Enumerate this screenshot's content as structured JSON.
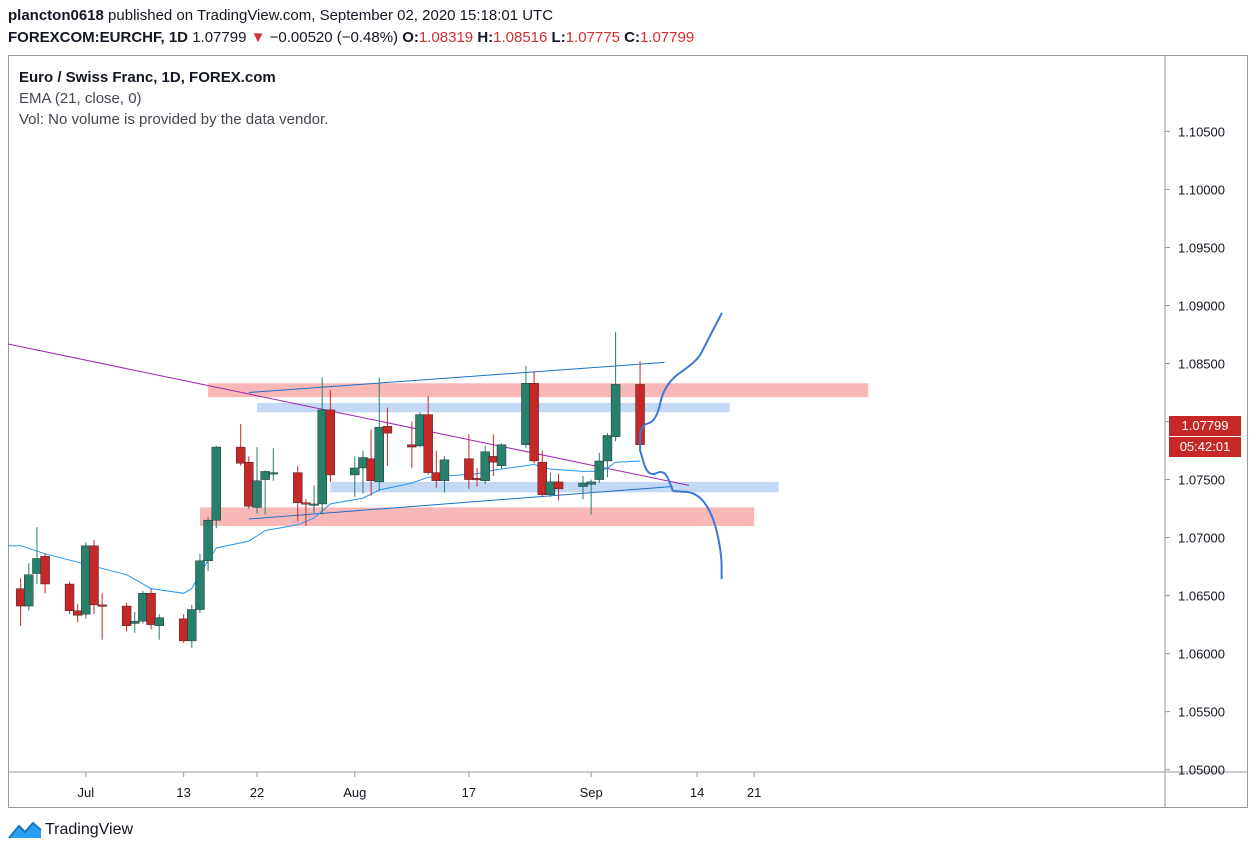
{
  "header": {
    "author": "plancton0618",
    "published_text": "published on TradingView.com, September 02, 2020 15:18:01 UTC",
    "symbol": "FOREXCOM:EURCHF, 1D",
    "last": "1.07799",
    "change": "−0.00520 (−0.48%)",
    "o_label": "O:",
    "o": "1.08319",
    "h_label": "H:",
    "h": "1.08516",
    "l_label": "L:",
    "l": "1.07775",
    "c_label": "C:",
    "c": "1.07799"
  },
  "legend": {
    "title": "Euro / Swiss Franc, 1D, FOREX.com",
    "ema": "EMA (21, close, 0)",
    "vol": "Vol: No volume is provided by the data vendor."
  },
  "price_tag": {
    "price": "1.07799",
    "countdown": "05:42:01"
  },
  "brand": "TradingView",
  "colors": {
    "up": "#26806b",
    "down": "#c62828",
    "ema": "#2196f3",
    "trendline": "#9c27b0",
    "channel": "#1e6fc8",
    "zone_red": "#f7a6a6",
    "zone_blue": "#b5cff2",
    "projection": "#3a77d6"
  },
  "chart_data": {
    "type": "candlestick",
    "title": "Euro / Swiss Franc, 1D, FOREX.com",
    "y_ticks": [
      "1.10500",
      "1.10000",
      "1.09500",
      "1.09000",
      "1.08500",
      "1.08000",
      "1.07500",
      "1.07000",
      "1.06500",
      "1.06000",
      "1.05500",
      "1.05000"
    ],
    "ylim": [
      1.0498,
      1.1115
    ],
    "x_ticks": [
      {
        "label": "Jul",
        "date": "2020-07-01"
      },
      {
        "label": "13",
        "date": "2020-07-13"
      },
      {
        "label": "22",
        "date": "2020-07-22"
      },
      {
        "label": "Aug",
        "date": "2020-08-03"
      },
      {
        "label": "17",
        "date": "2020-08-17"
      },
      {
        "label": "Sep",
        "date": "2020-09-01"
      },
      {
        "label": "14",
        "date": "2020-09-14"
      },
      {
        "label": "21",
        "date": "2020-09-21"
      }
    ],
    "candles": [
      {
        "date": "2020-06-23",
        "o": 1.0656,
        "h": 1.0665,
        "l": 1.0624,
        "c": 1.0641
      },
      {
        "date": "2020-06-24",
        "o": 1.0641,
        "h": 1.0678,
        "l": 1.0637,
        "c": 1.0668
      },
      {
        "date": "2020-06-25",
        "o": 1.0669,
        "h": 1.0709,
        "l": 1.066,
        "c": 1.0682
      },
      {
        "date": "2020-06-26",
        "o": 1.0684,
        "h": 1.0686,
        "l": 1.0652,
        "c": 1.066
      },
      {
        "date": "2020-06-29",
        "o": 1.066,
        "h": 1.0662,
        "l": 1.0634,
        "c": 1.0637
      },
      {
        "date": "2020-06-30",
        "o": 1.0637,
        "h": 1.0643,
        "l": 1.0627,
        "c": 1.0633
      },
      {
        "date": "2020-07-01",
        "o": 1.0634,
        "h": 1.0696,
        "l": 1.063,
        "c": 1.0693
      },
      {
        "date": "2020-07-02",
        "o": 1.0693,
        "h": 1.0698,
        "l": 1.0634,
        "c": 1.0642
      },
      {
        "date": "2020-07-03",
        "o": 1.0642,
        "h": 1.0652,
        "l": 1.0612,
        "c": 1.0641
      },
      {
        "date": "2020-07-06",
        "o": 1.0641,
        "h": 1.0644,
        "l": 1.0619,
        "c": 1.0624
      },
      {
        "date": "2020-07-07",
        "o": 1.0626,
        "h": 1.0636,
        "l": 1.0618,
        "c": 1.0628
      },
      {
        "date": "2020-07-08",
        "o": 1.0628,
        "h": 1.0654,
        "l": 1.0626,
        "c": 1.0652
      },
      {
        "date": "2020-07-09",
        "o": 1.0652,
        "h": 1.0656,
        "l": 1.0621,
        "c": 1.0625
      },
      {
        "date": "2020-07-10",
        "o": 1.0624,
        "h": 1.0634,
        "l": 1.0612,
        "c": 1.0631
      },
      {
        "date": "2020-07-13",
        "o": 1.063,
        "h": 1.0634,
        "l": 1.0609,
        "c": 1.0611
      },
      {
        "date": "2020-07-14",
        "o": 1.0611,
        "h": 1.0642,
        "l": 1.0605,
        "c": 1.0638
      },
      {
        "date": "2020-07-15",
        "o": 1.0638,
        "h": 1.0686,
        "l": 1.0635,
        "c": 1.068
      },
      {
        "date": "2020-07-16",
        "o": 1.068,
        "h": 1.0718,
        "l": 1.0671,
        "c": 1.0715
      },
      {
        "date": "2020-07-17",
        "o": 1.0715,
        "h": 1.0779,
        "l": 1.0708,
        "c": 1.0778
      },
      {
        "date": "2020-07-20",
        "o": 1.0778,
        "h": 1.0798,
        "l": 1.0762,
        "c": 1.0764
      },
      {
        "date": "2020-07-21",
        "o": 1.0765,
        "h": 1.077,
        "l": 1.0725,
        "c": 1.0727
      },
      {
        "date": "2020-07-22",
        "o": 1.0726,
        "h": 1.0778,
        "l": 1.0721,
        "c": 1.0749
      },
      {
        "date": "2020-07-23",
        "o": 1.075,
        "h": 1.0758,
        "l": 1.072,
        "c": 1.0757
      },
      {
        "date": "2020-07-24",
        "o": 1.0756,
        "h": 1.0777,
        "l": 1.0749,
        "c": 1.0756
      },
      {
        "date": "2020-07-27",
        "o": 1.0756,
        "h": 1.0762,
        "l": 1.0714,
        "c": 1.073
      },
      {
        "date": "2020-07-28",
        "o": 1.073,
        "h": 1.0733,
        "l": 1.071,
        "c": 1.0729
      },
      {
        "date": "2020-07-29",
        "o": 1.0729,
        "h": 1.0745,
        "l": 1.0721,
        "c": 1.0729
      },
      {
        "date": "2020-07-30",
        "o": 1.0729,
        "h": 1.0838,
        "l": 1.072,
        "c": 1.081
      },
      {
        "date": "2020-07-31",
        "o": 1.081,
        "h": 1.0827,
        "l": 1.0748,
        "c": 1.0754
      },
      {
        "date": "2020-08-03",
        "o": 1.0754,
        "h": 1.077,
        "l": 1.0735,
        "c": 1.076
      },
      {
        "date": "2020-08-04",
        "o": 1.076,
        "h": 1.0775,
        "l": 1.0738,
        "c": 1.0769
      },
      {
        "date": "2020-08-05",
        "o": 1.0768,
        "h": 1.0793,
        "l": 1.0736,
        "c": 1.0749
      },
      {
        "date": "2020-08-06",
        "o": 1.0748,
        "h": 1.0838,
        "l": 1.074,
        "c": 1.0795
      },
      {
        "date": "2020-08-07",
        "o": 1.0796,
        "h": 1.0812,
        "l": 1.0762,
        "c": 1.079
      },
      {
        "date": "2020-08-10",
        "o": 1.078,
        "h": 1.08,
        "l": 1.076,
        "c": 1.0778
      },
      {
        "date": "2020-08-11",
        "o": 1.0779,
        "h": 1.0808,
        "l": 1.0778,
        "c": 1.0806
      },
      {
        "date": "2020-08-12",
        "o": 1.0806,
        "h": 1.0822,
        "l": 1.0754,
        "c": 1.0756
      },
      {
        "date": "2020-08-13",
        "o": 1.0756,
        "h": 1.0775,
        "l": 1.0743,
        "c": 1.0749
      },
      {
        "date": "2020-08-14",
        "o": 1.0749,
        "h": 1.077,
        "l": 1.0739,
        "c": 1.0767
      },
      {
        "date": "2020-08-17",
        "o": 1.0768,
        "h": 1.0789,
        "l": 1.0742,
        "c": 1.075
      },
      {
        "date": "2020-08-18",
        "o": 1.0751,
        "h": 1.076,
        "l": 1.0744,
        "c": 1.075
      },
      {
        "date": "2020-08-19",
        "o": 1.0749,
        "h": 1.0779,
        "l": 1.0746,
        "c": 1.0774
      },
      {
        "date": "2020-08-20",
        "o": 1.077,
        "h": 1.0789,
        "l": 1.0753,
        "c": 1.0765
      },
      {
        "date": "2020-08-21",
        "o": 1.0762,
        "h": 1.0781,
        "l": 1.0759,
        "c": 1.078
      },
      {
        "date": "2020-08-24",
        "o": 1.078,
        "h": 1.0848,
        "l": 1.0777,
        "c": 1.0833
      },
      {
        "date": "2020-08-25",
        "o": 1.0833,
        "h": 1.0843,
        "l": 1.0764,
        "c": 1.0766
      },
      {
        "date": "2020-08-26",
        "o": 1.0765,
        "h": 1.0775,
        "l": 1.0736,
        "c": 1.0737
      },
      {
        "date": "2020-08-27",
        "o": 1.0737,
        "h": 1.0756,
        "l": 1.0735,
        "c": 1.0748
      },
      {
        "date": "2020-08-28",
        "o": 1.0748,
        "h": 1.0755,
        "l": 1.0732,
        "c": 1.0742
      },
      {
        "date": "2020-08-31",
        "o": 1.0744,
        "h": 1.0753,
        "l": 1.0733,
        "c": 1.0747
      },
      {
        "date": "2020-09-01",
        "o": 1.0746,
        "h": 1.075,
        "l": 1.072,
        "c": 1.0748
      },
      {
        "date": "2020-09-02",
        "o": 1.075,
        "h": 1.0773,
        "l": 1.0747,
        "c": 1.0766
      },
      {
        "date": "2020-09-03",
        "o": 1.0766,
        "h": 1.079,
        "l": 1.0752,
        "c": 1.0788
      },
      {
        "date": "2020-09-04",
        "o": 1.0787,
        "h": 1.0877,
        "l": 1.0783,
        "c": 1.0832
      },
      {
        "date": "2020-09-07",
        "o": 1.0832,
        "h": 1.0852,
        "l": 1.0778,
        "c": 1.078
      }
    ],
    "ema": [
      [
        0,
        1.0693
      ],
      [
        3,
        1.0686
      ],
      [
        6,
        1.0677
      ],
      [
        9,
        1.0668
      ],
      [
        12,
        1.0656
      ],
      [
        14,
        1.0652
      ],
      [
        15,
        1.0656
      ],
      [
        16,
        1.0669
      ],
      [
        17,
        1.068
      ],
      [
        18,
        1.0691
      ],
      [
        20,
        1.0697
      ],
      [
        22,
        1.0706
      ],
      [
        24,
        1.0711
      ],
      [
        26,
        1.0717
      ],
      [
        28,
        1.0729
      ],
      [
        30,
        1.0734
      ],
      [
        32,
        1.0741
      ],
      [
        34,
        1.0747
      ],
      [
        36,
        1.0752
      ],
      [
        38,
        1.0753
      ],
      [
        40,
        1.0755
      ],
      [
        42,
        1.0758
      ],
      [
        44,
        1.0762
      ],
      [
        45,
        1.0763
      ],
      [
        47,
        1.0759
      ],
      [
        49,
        1.0757
      ],
      [
        51,
        1.0757
      ],
      [
        52,
        1.076
      ],
      [
        53,
        1.0765
      ],
      [
        54,
        1.0766
      ]
    ],
    "trendline_purple": [
      [
        "2020-06-22",
        1.0866
      ],
      [
        "2020-09-13",
        1.0745
      ]
    ],
    "channel_upper": [
      [
        "2020-07-21",
        1.0825
      ],
      [
        "2020-09-10",
        1.0851
      ]
    ],
    "channel_lower": [
      [
        "2020-07-21",
        1.0716
      ],
      [
        "2020-09-11",
        1.0744
      ]
    ],
    "zones_red": [
      {
        "from": "2020-07-16",
        "to": "2020-10-05",
        "y1": 1.0821,
        "y2": 1.0833
      },
      {
        "from": "2020-07-15",
        "to": "2020-09-21",
        "y1": 1.071,
        "y2": 1.0726
      }
    ],
    "zones_blue": [
      {
        "from": "2020-07-22",
        "to": "2020-09-18",
        "y1": 1.0808,
        "y2": 1.0816
      },
      {
        "from": "2020-07-31",
        "to": "2020-09-24",
        "y1": 1.0739,
        "y2": 1.0748
      }
    ],
    "projection_up": [
      [
        "2020-09-07",
        1.0775
      ],
      [
        "2020-09-07",
        1.0797
      ],
      [
        "2020-09-09",
        1.08
      ],
      [
        "2020-09-10",
        1.0833
      ],
      [
        "2020-09-14",
        1.0852
      ],
      [
        "2020-09-15",
        1.0866
      ],
      [
        "2020-09-17",
        1.0893
      ]
    ],
    "projection_down": [
      [
        "2020-09-07",
        1.0775
      ],
      [
        "2020-09-08",
        1.0752
      ],
      [
        "2020-09-10",
        1.0759
      ],
      [
        "2020-09-11",
        1.0741
      ],
      [
        "2020-09-11",
        1.074
      ],
      [
        "2020-09-14",
        1.0739
      ],
      [
        "2020-09-16",
        1.0719
      ],
      [
        "2020-09-17",
        1.0686
      ],
      [
        "2020-09-17",
        1.0665
      ]
    ]
  }
}
